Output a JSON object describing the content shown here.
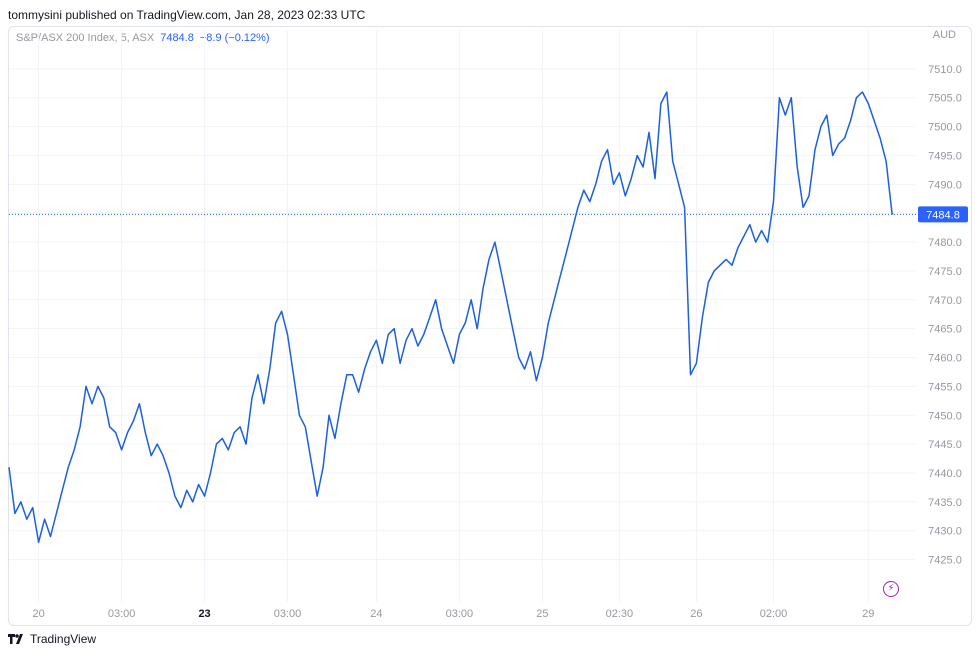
{
  "header": {
    "publish_line": "tommysini published on TradingView.com, Jan 28, 2023 02:33 UTC"
  },
  "legend": {
    "symbol": "S&P/ASX 200 Index, 5, ASX",
    "last": "7484.8",
    "change": "−8.9 (−0.12%)"
  },
  "axis": {
    "currency": "AUD"
  },
  "brand": {
    "name": "TradingView"
  },
  "colors": {
    "line": "#1c5fe0",
    "label_bg": "#2962ff",
    "grid": "#f0f3fa",
    "text_muted": "#9598a1"
  },
  "icons": {
    "flash": "flash-icon",
    "logo": "tradingview-logo"
  },
  "chart_data": {
    "type": "line",
    "title": "S&P/ASX 200 Index, 5, ASX",
    "ylim": [
      7418,
      7515
    ],
    "y_ticks": [
      7425.0,
      7430.0,
      7435.0,
      7440.0,
      7445.0,
      7450.0,
      7455.0,
      7460.0,
      7465.0,
      7470.0,
      7475.0,
      7480.0,
      7485.0,
      7490.0,
      7495.0,
      7500.0,
      7505.0,
      7510.0
    ],
    "x_ticks": [
      {
        "label": "20",
        "bold": false,
        "i": 5
      },
      {
        "label": "03:00",
        "bold": false,
        "i": 19
      },
      {
        "label": "23",
        "bold": true,
        "i": 33
      },
      {
        "label": "03:00",
        "bold": false,
        "i": 47
      },
      {
        "label": "24",
        "bold": false,
        "i": 62
      },
      {
        "label": "03:00",
        "bold": false,
        "i": 76
      },
      {
        "label": "25",
        "bold": false,
        "i": 90
      },
      {
        "label": "02:30",
        "bold": false,
        "i": 103
      },
      {
        "label": "26",
        "bold": false,
        "i": 116
      },
      {
        "label": "02:00",
        "bold": false,
        "i": 129
      },
      {
        "label": "29",
        "bold": false,
        "i": 145
      }
    ],
    "last_value": 7484.8,
    "series": [
      {
        "values": [
          7441,
          7433,
          7435,
          7432,
          7434,
          7428,
          7432,
          7429,
          7433,
          7437,
          7441,
          7444,
          7448,
          7455,
          7452,
          7455,
          7453,
          7448,
          7447,
          7444,
          7447,
          7449,
          7452,
          7447,
          7443,
          7445,
          7443,
          7440,
          7436,
          7434,
          7437,
          7435,
          7438,
          7436,
          7440,
          7445,
          7446,
          7444,
          7447,
          7448,
          7445,
          7453,
          7457,
          7452,
          7458,
          7466,
          7468,
          7464,
          7457,
          7450,
          7448,
          7442,
          7436,
          7441,
          7450,
          7446,
          7452,
          7457,
          7457,
          7454,
          7458,
          7461,
          7463,
          7459,
          7464,
          7465,
          7459,
          7463,
          7465,
          7462,
          7464,
          7467,
          7470,
          7465,
          7462,
          7459,
          7464,
          7466,
          7470,
          7465,
          7472,
          7477,
          7480,
          7475,
          7470,
          7465,
          7460,
          7458,
          7461,
          7456,
          7460,
          7466,
          7470,
          7474,
          7478,
          7482,
          7486,
          7489,
          7487,
          7490,
          7494,
          7496,
          7490,
          7492,
          7488,
          7491,
          7495,
          7493,
          7499,
          7491,
          7504,
          7506,
          7494,
          7490,
          7486,
          7457,
          7459,
          7467,
          7473,
          7475,
          7476,
          7477,
          7476,
          7479,
          7481,
          7483,
          7480,
          7482,
          7480,
          7487,
          7505,
          7502,
          7505,
          7493,
          7486,
          7488,
          7496,
          7500,
          7502,
          7495,
          7497,
          7498,
          7501,
          7505,
          7506,
          7504,
          7501,
          7498,
          7494,
          7485
        ],
        "extra_close": 7484.8
      }
    ]
  }
}
